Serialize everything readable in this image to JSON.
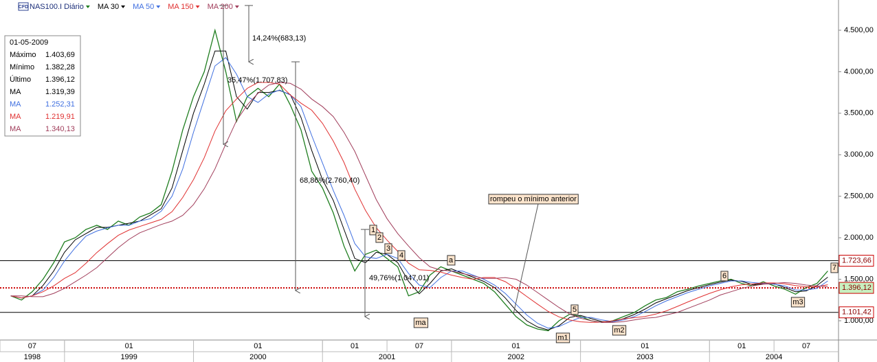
{
  "chart_data": {
    "type": "line",
    "symbol_badge": "CFD",
    "x": [
      "1998-08",
      "1998-09",
      "1998-10",
      "1998-11",
      "1998-12",
      "1999-01",
      "1999-02",
      "1999-03",
      "1999-04",
      "1999-05",
      "1999-06",
      "1999-07",
      "1999-08",
      "1999-09",
      "1999-10",
      "1999-11",
      "1999-12",
      "2000-01",
      "2000-02",
      "2000-03",
      "2000-04",
      "2000-05",
      "2000-06",
      "2000-07",
      "2000-08",
      "2000-09",
      "2000-10",
      "2000-11",
      "2000-12",
      "2001-01",
      "2001-02",
      "2001-03",
      "2001-04",
      "2001-05",
      "2001-06",
      "2001-07",
      "2001-08",
      "2001-09",
      "2001-10",
      "2001-11",
      "2001-12",
      "2002-01",
      "2002-02",
      "2002-03",
      "2002-04",
      "2002-05",
      "2002-06",
      "2002-07",
      "2002-08",
      "2002-09",
      "2002-10",
      "2002-11",
      "2002-12",
      "2003-01",
      "2003-02",
      "2003-03",
      "2003-04",
      "2003-05",
      "2003-06",
      "2003-07",
      "2003-08",
      "2003-09",
      "2003-10",
      "2003-11",
      "2003-12",
      "2004-01",
      "2004-02",
      "2004-03",
      "2004-04",
      "2004-05",
      "2004-06",
      "2004-07",
      "2004-08",
      "2004-09",
      "2004-10",
      "2004-11",
      "2004-12"
    ],
    "series": [
      {
        "name": "NAS100.I Diário",
        "color": "#1e7d1e",
        "values": [
          1300,
          1250,
          1350,
          1500,
          1700,
          1950,
          2000,
          2100,
          2150,
          2100,
          2200,
          2150,
          2250,
          2300,
          2400,
          2800,
          3300,
          3700,
          4000,
          4500,
          4000,
          3400,
          3700,
          3800,
          3700,
          3850,
          3600,
          3300,
          2800,
          2600,
          2300,
          1900,
          1600,
          1800,
          1850,
          1750,
          1650,
          1300,
          1350,
          1550,
          1650,
          1600,
          1550,
          1500,
          1450,
          1350,
          1200,
          1050,
          950,
          900,
          880,
          1000,
          1080,
          1050,
          1000,
          980,
          1000,
          1050,
          1100,
          1180,
          1250,
          1280,
          1350,
          1380,
          1420,
          1450,
          1480,
          1500,
          1450,
          1420,
          1470,
          1420,
          1380,
          1320,
          1400,
          1450,
          1600
        ]
      },
      {
        "name": "MA 30",
        "color": "#000000",
        "values": [
          1300,
          1275,
          1300,
          1425,
          1600,
          1825,
          1975,
          2050,
          2125,
          2125,
          2150,
          2175,
          2200,
          2275,
          2350,
          2600,
          3050,
          3500,
          3850,
          4250,
          4250,
          3700,
          3550,
          3750,
          3750,
          3775,
          3725,
          3450,
          3050,
          2700,
          2450,
          2100,
          1750,
          1700,
          1825,
          1800,
          1700,
          1475,
          1325,
          1450,
          1600,
          1625,
          1575,
          1525,
          1475,
          1400,
          1275,
          1125,
          1000,
          925,
          890,
          940,
          1040,
          1065,
          1025,
          990,
          990,
          1025,
          1075,
          1140,
          1215,
          1265,
          1315,
          1365,
          1400,
          1435,
          1465,
          1490,
          1475,
          1435,
          1445,
          1445,
          1400,
          1350,
          1360,
          1425,
          1525
        ]
      },
      {
        "name": "MA 50",
        "color": "#3f6fe0",
        "values": [
          1300,
          1275,
          1300,
          1370,
          1520,
          1720,
          1880,
          2020,
          2080,
          2120,
          2150,
          2150,
          2200,
          2230,
          2320,
          2500,
          2830,
          3270,
          3670,
          4070,
          4170,
          3970,
          3700,
          3630,
          3730,
          3780,
          3720,
          3580,
          3230,
          2900,
          2570,
          2270,
          1930,
          1770,
          1750,
          1800,
          1750,
          1570,
          1430,
          1400,
          1520,
          1600,
          1600,
          1550,
          1500,
          1430,
          1330,
          1200,
          1070,
          970,
          910,
          930,
          990,
          1040,
          1040,
          1010,
          990,
          1010,
          1050,
          1110,
          1180,
          1240,
          1290,
          1340,
          1380,
          1420,
          1450,
          1480,
          1480,
          1460,
          1450,
          1440,
          1420,
          1370,
          1370,
          1390,
          1480
        ]
      },
      {
        "name": "MA 150",
        "color": "#e03030",
        "values": [
          1300,
          1275,
          1300,
          1350,
          1420,
          1510,
          1579,
          1693,
          1821,
          1929,
          2029,
          2093,
          2136,
          2179,
          2221,
          2314,
          2486,
          2700,
          2964,
          3286,
          3529,
          3671,
          3800,
          3871,
          3871,
          3850,
          3721,
          3621,
          3536,
          3379,
          3164,
          2907,
          2586,
          2329,
          2121,
          1971,
          1836,
          1693,
          1614,
          1607,
          1586,
          1550,
          1521,
          1500,
          1521,
          1521,
          1471,
          1386,
          1293,
          1200,
          1111,
          1047,
          1009,
          987,
          980,
          984,
          999,
          1023,
          1037,
          1051,
          1080,
          1120,
          1173,
          1227,
          1280,
          1330,
          1373,
          1409,
          1433,
          1443,
          1456,
          1456,
          1446,
          1423,
          1409,
          1409,
          1434
        ]
      },
      {
        "name": "MA 200",
        "color": "#a03c5a",
        "values": [
          1300,
          1300,
          1290,
          1290,
          1330,
          1390,
          1470,
          1550,
          1640,
          1760,
          1880,
          1980,
          2060,
          2110,
          2160,
          2200,
          2270,
          2400,
          2590,
          2830,
          3130,
          3410,
          3600,
          3740,
          3840,
          3870,
          3860,
          3790,
          3670,
          3580,
          3460,
          3270,
          3040,
          2750,
          2460,
          2230,
          2050,
          1900,
          1760,
          1650,
          1610,
          1600,
          1570,
          1540,
          1510,
          1510,
          1520,
          1500,
          1430,
          1340,
          1250,
          1160,
          1080,
          1030,
          1000,
          980,
          980,
          990,
          1010,
          1030,
          1040,
          1070,
          1100,
          1150,
          1200,
          1250,
          1310,
          1350,
          1390,
          1420,
          1440,
          1450,
          1460,
          1450,
          1430,
          1420,
          1410
        ]
      }
    ],
    "xlim": [
      "1998-07",
      "2005-01"
    ],
    "xticks": [
      {
        "value": "1998-07",
        "label": "07"
      },
      {
        "value": "1999-01",
        "label": "01"
      },
      {
        "value": "2000-01",
        "label": "01"
      },
      {
        "value": "2001-01",
        "label": "01"
      },
      {
        "value": "2001-07",
        "label": "07"
      },
      {
        "value": "2002-01",
        "label": "01"
      },
      {
        "value": "2003-01",
        "label": "01"
      },
      {
        "value": "2004-01",
        "label": "01"
      },
      {
        "value": "2004-07",
        "label": "07"
      }
    ],
    "year_ticks": [
      1998,
      1999,
      2000,
      2001,
      2002,
      2003,
      2004
    ],
    "ylim": [
      768,
      4864
    ],
    "yticks": [
      {
        "value": 1000,
        "label": "1.000,00"
      },
      {
        "value": 1500,
        "label": "1.500,00"
      },
      {
        "value": 2000,
        "label": "2.000,00"
      },
      {
        "value": 2500,
        "label": "2.500,00"
      },
      {
        "value": 3000,
        "label": "3.000,00"
      },
      {
        "value": 3500,
        "label": "3.500,00"
      },
      {
        "value": 4000,
        "label": "4.000,00"
      },
      {
        "value": 4500,
        "label": "4.500,00"
      }
    ],
    "levels": [
      {
        "value": 1723.66,
        "label": "1.723,66",
        "color": "#000000",
        "dashed": false,
        "fill": "#ffffff"
      },
      {
        "value": 1396.12,
        "label": "1.396,12",
        "color": "#cc0000",
        "dashed": true,
        "fill": "#c8f0c0"
      },
      {
        "value": 1101.42,
        "label": "1.101,42",
        "color": "#000000",
        "dashed": false,
        "fill": "#ffffff"
      }
    ],
    "info_box": {
      "title": "01-05-2009",
      "rows": [
        [
          "Máximo",
          "1.403,69"
        ],
        [
          "Mínimo",
          "1.382,28"
        ],
        [
          "Último",
          "1.396,12"
        ],
        [
          "MA",
          "1.319,39"
        ],
        [
          "MA",
          "1.252,31"
        ],
        [
          "MA",
          "1.219,91"
        ],
        [
          "MA",
          "1.340,13"
        ]
      ]
    },
    "annotations": [
      "14,24%(683,13)",
      "35,47%(1.707,83)",
      "68,86%(2.760,40)",
      "49,76%(1.047,01)",
      "rompeu o mínimo anterior"
    ],
    "markers": [
      "1",
      "2",
      "3",
      "4",
      "a",
      "ma",
      "5",
      "m1",
      "m2",
      "6",
      "m3",
      "7"
    ]
  }
}
